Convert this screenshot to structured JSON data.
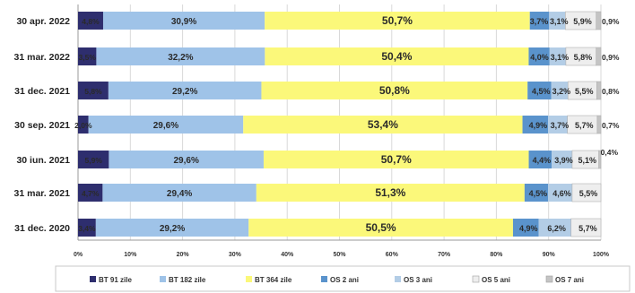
{
  "chart_data": {
    "type": "bar",
    "orientation": "horizontal",
    "stacked": "percent",
    "categories": [
      "30 apr. 2022",
      "31 mar. 2022",
      "31 dec. 2021",
      "30 sep. 2021",
      "30 iun. 2021",
      "31 mar. 2021",
      "31 dec. 2020"
    ],
    "series": [
      {
        "name": "BT 91 zile",
        "color": "#2e2e6e",
        "values": [
          4.8,
          3.5,
          5.8,
          2.0,
          5.9,
          4.7,
          3.4
        ],
        "labels": [
          "4,8%",
          "3,5%",
          "5,8%",
          "2,0%",
          "5,9%",
          "4,7%",
          "3,4%"
        ]
      },
      {
        "name": "BT 182 zile",
        "color": "#9fc3e8",
        "values": [
          30.9,
          32.2,
          29.2,
          29.6,
          29.6,
          29.4,
          29.2
        ],
        "labels": [
          "30,9%",
          "32,2%",
          "29,2%",
          "29,6%",
          "29,6%",
          "29,4%",
          "29,2%"
        ]
      },
      {
        "name": "BT 364 zile",
        "color": "#fbf87a",
        "values": [
          50.7,
          50.4,
          50.8,
          53.4,
          50.7,
          51.3,
          50.5
        ],
        "labels": [
          "50,7%",
          "50,4%",
          "50,8%",
          "53,4%",
          "50,7%",
          "51,3%",
          "50,5%"
        ]
      },
      {
        "name": "OS 2 ani",
        "color": "#5a93cc",
        "values": [
          3.7,
          4.0,
          4.5,
          4.9,
          4.4,
          4.5,
          4.9
        ],
        "labels": [
          "3,7%",
          "4,0%",
          "4,5%",
          "4,9%",
          "4,4%",
          "4,5%",
          "4,9%"
        ]
      },
      {
        "name": "OS 3 ani",
        "color": "#b3cde6",
        "values": [
          3.1,
          3.1,
          3.2,
          3.7,
          3.9,
          4.6,
          6.2
        ],
        "labels": [
          "3,1%",
          "3,1%",
          "3,2%",
          "3,7%",
          "3,9%",
          "4,6%",
          "6,2%"
        ]
      },
      {
        "name": "OS 5 ani",
        "color": "#eeeeee",
        "values": [
          5.9,
          5.8,
          5.5,
          5.7,
          5.1,
          5.5,
          5.7
        ],
        "labels": [
          "5,9%",
          "5,8%",
          "5,5%",
          "5,7%",
          "5,1%",
          "5,5%",
          "5,7%"
        ]
      },
      {
        "name": "OS 7 ani",
        "color": "#c4c4c4",
        "values": [
          0.9,
          0.9,
          0.8,
          0.7,
          0.4,
          0.0,
          0.0
        ],
        "labels": [
          "0,9%",
          "0,9%",
          "0,8%",
          "0,7%",
          "0,4%",
          "",
          ""
        ]
      }
    ],
    "x_ticks": [
      "0%",
      "10%",
      "20%",
      "30%",
      "40%",
      "50%",
      "60%",
      "70%",
      "80%",
      "90%",
      "100%"
    ],
    "xlim": [
      0,
      100
    ],
    "grid": true,
    "legend_position": "bottom"
  }
}
